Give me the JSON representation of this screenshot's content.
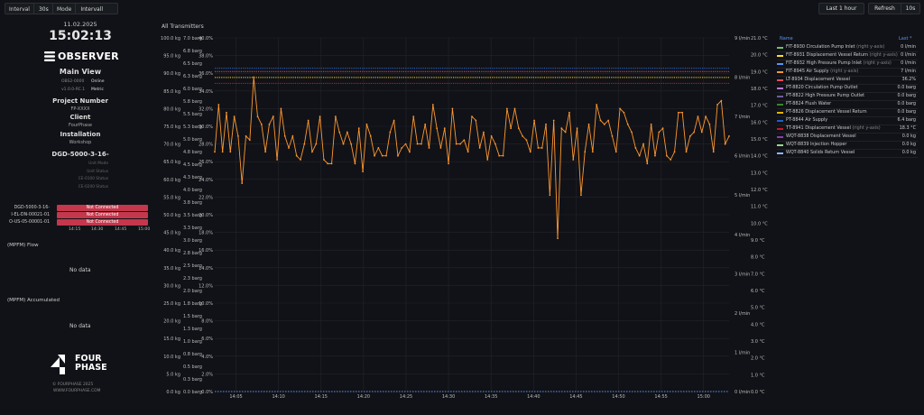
{
  "toolbar": {
    "interval_label": "Interval",
    "interval_value": "30s",
    "mode_label": "Mode",
    "mode_value": "Intervall",
    "time_range": "Last 1 hour",
    "refresh_label": "Refresh",
    "refresh_value": "10s"
  },
  "left": {
    "date": "11.02.2025",
    "time": "15:02:13",
    "brand": "OBSERVER",
    "view": "Main View",
    "rows": [
      {
        "k": "OBS2-0000",
        "v": "Online"
      },
      {
        "k": "v1.0.0-RC.1",
        "v": "Metric"
      }
    ],
    "project_heading": "Project Number",
    "project_value": "FP-XXXX",
    "client_heading": "Client",
    "client_value": "FourPhase",
    "install_heading": "Installation",
    "install_value": "Workshop",
    "unit_heading": "DGD-5000-3-16-",
    "unit_status": [
      "Unit Mode",
      "Unit Status",
      "CE-0100 Status",
      "CE-0200 Status"
    ],
    "devices": [
      {
        "name": "DGD-5000-3-16-",
        "status": "Not Connected"
      },
      {
        "name": "I-EL-DN-00021-01",
        "status": "Not Connected"
      },
      {
        "name": "O-US-05-00001-01",
        "status": "Not Connected"
      }
    ],
    "device_times": [
      "14:15",
      "14:30",
      "14:45",
      "15:00"
    ],
    "flow_title": "(MPFM) Flow",
    "flow_nodata": "No data",
    "acc_title": "(MPFM) Accumulated",
    "acc_nodata": "No data",
    "logo_line1": "FOUR",
    "logo_line2": "PHASE",
    "copyright": "© FOURPHASE 2025",
    "site": "WWW.FOURPHASE.COM"
  },
  "chart_title": "All Transmitters",
  "legend": {
    "name_header": "Name",
    "last_header": "Last *",
    "items": [
      {
        "name": "FIT-8930 Circulation Pump Inlet",
        "axis": "(right y-axis)",
        "value": "0 l/min",
        "color": "#73bf69"
      },
      {
        "name": "FIT-8931 Displacement Vessel Return",
        "axis": "(right y-axis)",
        "value": "0 l/min",
        "color": "#fade2a"
      },
      {
        "name": "FIT-8932 High Pressure Pump Inlet",
        "axis": "(right y-axis)",
        "value": "0 l/min",
        "color": "#5794f2"
      },
      {
        "name": "FIT-8945 Air Supply",
        "axis": "(right y-axis)",
        "value": "7 l/min",
        "color": "#ff9830"
      },
      {
        "name": "LT-8934 Displacement Vessel",
        "axis": "",
        "value": "36.2%",
        "color": "#f2495c"
      },
      {
        "name": "PT-8820 Circulation Pump Outlet",
        "axis": "",
        "value": "0.0 barg",
        "color": "#b877d9"
      },
      {
        "name": "PT-8822 High Pressure Pump Outlet",
        "axis": "",
        "value": "0.0 barg",
        "color": "#705da0"
      },
      {
        "name": "PT-8824 Flush Water",
        "axis": "",
        "value": "0.0 barg",
        "color": "#37872d"
      },
      {
        "name": "PT-8826 Displacement Vessel Return",
        "axis": "",
        "value": "0.0 barg",
        "color": "#e0b400"
      },
      {
        "name": "PT-8844 Air Supply",
        "axis": "",
        "value": "6.4 barg",
        "color": "#1f60c4"
      },
      {
        "name": "TT-8941 Displacement Vessel",
        "axis": "(right y-axis)",
        "value": "18.3 °C",
        "color": "#c4162a"
      },
      {
        "name": "WQT-8838 Displacement Vessel",
        "axis": "",
        "value": "0.0 kg",
        "color": "#8f3bb8"
      },
      {
        "name": "WQT-8839 Injection Hopper",
        "axis": "",
        "value": "0.0 kg",
        "color": "#96d98d"
      },
      {
        "name": "WQT-8840 Solids Return Vessel",
        "axis": "",
        "value": "0.0 kg",
        "color": "#8ab8ff"
      }
    ]
  },
  "chart_data": {
    "type": "line",
    "x_ticks": [
      "14:05",
      "14:10",
      "14:15",
      "14:20",
      "14:25",
      "14:30",
      "14:35",
      "14:40",
      "14:45",
      "14:50",
      "14:55",
      "15:00"
    ],
    "axes": {
      "kg": [
        "100.0 kg",
        "95.0 kg",
        "90.0 kg",
        "85.0 kg",
        "80.0 kg",
        "75.0 kg",
        "70.0 kg",
        "65.0 kg",
        "60.0 kg",
        "55.0 kg",
        "50.0 kg",
        "45.0 kg",
        "40.0 kg",
        "35.0 kg",
        "30.0 kg",
        "25.0 kg",
        "20.0 kg",
        "15.0 kg",
        "10.0 kg",
        "5.0 kg",
        "0.0 kg"
      ],
      "barg": [
        "7.0 barg",
        "6.8 barg",
        "6.5 barg",
        "6.3 barg",
        "6.0 barg",
        "5.8 barg",
        "5.5 barg",
        "5.3 barg",
        "5.0 barg",
        "4.8 barg",
        "4.5 barg",
        "4.3 barg",
        "4.0 barg",
        "3.8 barg",
        "3.5 barg",
        "3.3 barg",
        "3.0 barg",
        "2.8 barg",
        "2.5 barg",
        "2.3 barg",
        "2.0 barg",
        "1.8 barg",
        "1.5 barg",
        "1.3 barg",
        "1.0 barg",
        "0.8 barg",
        "0.5 barg",
        "0.3 barg",
        "0.0 barg"
      ],
      "pct": [
        "40.0%",
        "38.0%",
        "36.0%",
        "34.0%",
        "32.0%",
        "30.0%",
        "28.0%",
        "26.0%",
        "24.0%",
        "22.0%",
        "20.0%",
        "18.0%",
        "16.0%",
        "14.0%",
        "12.0%",
        "10.0%",
        "8.0%",
        "6.0%",
        "4.0%",
        "2.0%",
        "0.0%"
      ],
      "lmin": [
        "9 l/min",
        "8 l/min",
        "7 l/min",
        "6 l/min",
        "5 l/min",
        "4 l/min",
        "3 l/min",
        "2 l/min",
        "1 l/min",
        "0 l/min"
      ],
      "degc": [
        "21.0 °C",
        "20.0 °C",
        "19.0 °C",
        "18.0 °C",
        "17.0 °C",
        "16.0 °C",
        "15.0 °C",
        "14.0 °C",
        "13.0 °C",
        "12.0 °C",
        "11.0 °C",
        "10.0 °C",
        "9.0 °C",
        "8.0 °C",
        "7.0 °C",
        "6.0 °C",
        "5.0 °C",
        "4.0 °C",
        "3.0 °C",
        "2.0 °C",
        "1.0 °C",
        "0.0 °C"
      ]
    },
    "series": [
      {
        "name": "FIT-8945 Air Supply",
        "unit": "l/min",
        "color": "#ff9830",
        "values": [
          6.1,
          7.3,
          6.1,
          7.1,
          6.1,
          7.0,
          6.5,
          5.3,
          6.5,
          6.4,
          8.0,
          7.0,
          6.8,
          6.1,
          6.8,
          7.0,
          5.9,
          7.2,
          6.5,
          6.2,
          6.5,
          6.0,
          5.9,
          6.3,
          6.9,
          6.1,
          6.3,
          7.0,
          5.9,
          5.8,
          5.8,
          7.0,
          6.6,
          6.3,
          6.6,
          6.3,
          5.8,
          6.7,
          5.6,
          6.8,
          6.5,
          6.0,
          6.2,
          6.0,
          6.0,
          6.6,
          6.9,
          6.0,
          6.2,
          6.3,
          6.1,
          7.0,
          6.3,
          6.3,
          6.8,
          6.2,
          7.3,
          6.7,
          6.2,
          6.7,
          5.8,
          7.2,
          6.3,
          6.3,
          6.4,
          6.1,
          7.0,
          6.9,
          6.2,
          6.6,
          5.9,
          6.5,
          6.3,
          6.0,
          6.0,
          7.2,
          6.7,
          7.2,
          6.7,
          6.5,
          6.4,
          6.1,
          6.9,
          6.2,
          6.2,
          6.8,
          5.0,
          6.9,
          3.9,
          6.7,
          6.6,
          7.1,
          5.9,
          6.7,
          5.0,
          6.1,
          6.8,
          6.1,
          7.3,
          6.9,
          6.8,
          6.9,
          6.5,
          6.1,
          7.2,
          7.1,
          6.8,
          6.6,
          6.2,
          6.0,
          6.3,
          5.8,
          6.8,
          6.0,
          6.6,
          6.7,
          6.0,
          5.9,
          6.1,
          7.1,
          7.1,
          6.1,
          6.5,
          6.6,
          7.0,
          6.6,
          7.0,
          6.8,
          6.1,
          7.3,
          7.4,
          6.3,
          6.5
        ]
      },
      {
        "name": "LT-8934 Displacement Vessel",
        "unit": "%",
        "color": "#f2495c",
        "values": [
          36.2,
          36.2
        ]
      },
      {
        "name": "TT-8941 Displacement Vessel",
        "unit": "°C",
        "color": "#c4162a",
        "values": [
          18.3,
          18.3
        ]
      },
      {
        "name": "PT-8844 Air Supply",
        "unit": "barg",
        "color": "#1f60c4",
        "values": [
          6.4,
          6.4
        ]
      },
      {
        "name": "WQT-8838 Displacement Vessel",
        "unit": "kg",
        "color": "#8f3bb8",
        "values": [
          0,
          0
        ]
      }
    ]
  }
}
